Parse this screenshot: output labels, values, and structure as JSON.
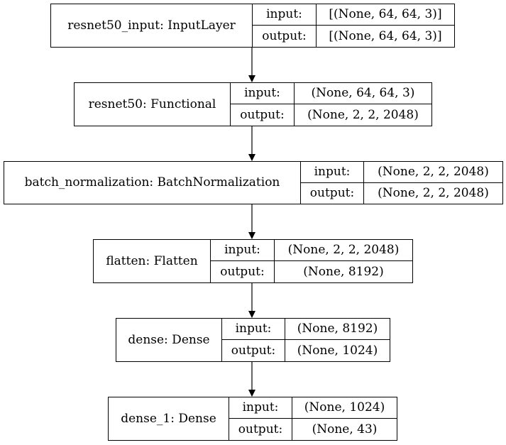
{
  "diagram": {
    "io_labels": {
      "input": "input:",
      "output": "output:"
    },
    "nodes": [
      {
        "name": "resnet50_input: InputLayer",
        "input": "[(None, 64, 64, 3)]",
        "output": "[(None, 64, 64, 3)]"
      },
      {
        "name": "resnet50: Functional",
        "input": "(None, 64, 64, 3)",
        "output": "(None, 2, 2, 2048)"
      },
      {
        "name": "batch_normalization: BatchNormalization",
        "input": "(None, 2, 2, 2048)",
        "output": "(None, 2, 2, 2048)"
      },
      {
        "name": "flatten: Flatten",
        "input": "(None, 2, 2, 2048)",
        "output": "(None, 8192)"
      },
      {
        "name": "dense: Dense",
        "input": "(None, 8192)",
        "output": "(None, 1024)"
      },
      {
        "name": "dense_1: Dense",
        "input": "(None, 1024)",
        "output": "(None, 43)"
      }
    ]
  }
}
